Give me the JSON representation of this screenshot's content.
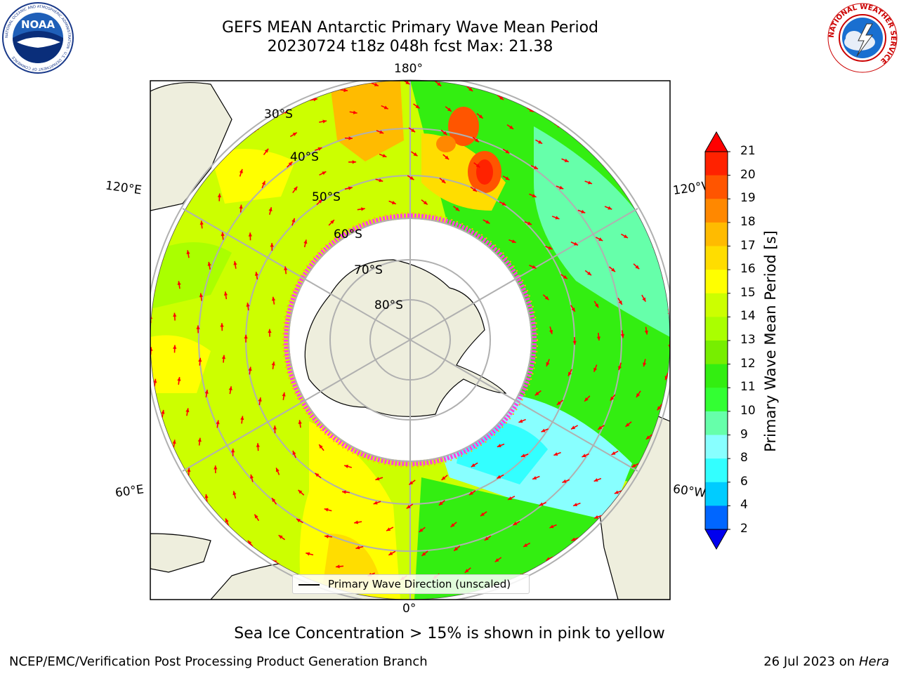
{
  "header": {
    "title_line1": "GEFS MEAN Antarctic Primary Wave Mean Period",
    "title_line2": "20230724 t18z 048h fcst   Max: 21.38"
  },
  "logos": {
    "left": "NOAA",
    "left_ring": "NATIONAL OCEANIC AND ATMOSPHERIC ADMINISTRATION · U.S. DEPARTMENT OF COMMERCE",
    "right_ring": "NATIONAL WEATHER SERVICE"
  },
  "map": {
    "lon_labels": {
      "top": "180°",
      "bottom": "0°",
      "upper_left": "120°E",
      "lower_left": "60°E",
      "upper_right": "120°W",
      "lower_right": "60°W"
    },
    "lat_labels": [
      "30°S",
      "40°S",
      "50°S",
      "60°S",
      "70°S",
      "80°S"
    ],
    "legend_label": "Primary Wave Direction (unscaled)",
    "colors": {
      "land": "#eeeedd",
      "ice_edge": "#ff44dd"
    }
  },
  "colorbar": {
    "title": "Primary Wave Mean Period [s]",
    "ticks": [
      "2",
      "4",
      "6",
      "8",
      "9",
      "10",
      "11",
      "12",
      "13",
      "14",
      "15",
      "16",
      "17",
      "18",
      "19",
      "20",
      "21"
    ],
    "colors": [
      "#0000ee",
      "#0066ff",
      "#00ccff",
      "#33ffff",
      "#88ffff",
      "#66ffaa",
      "#33ff33",
      "#33ee11",
      "#77ee00",
      "#aaff00",
      "#ccff00",
      "#ffff00",
      "#ffdd00",
      "#ffbb00",
      "#ff8800",
      "#ff5500",
      "#ff2200"
    ],
    "extend_low": "#0000ee",
    "extend_high": "#ff0000"
  },
  "caption": "Sea Ice Concentration > 15% is shown in pink to yellow",
  "footer": {
    "left": "NCEP/EMC/Verification Post Processing Product Generation Branch",
    "date": "26 Jul 2023 on ",
    "machine": "Hera"
  }
}
